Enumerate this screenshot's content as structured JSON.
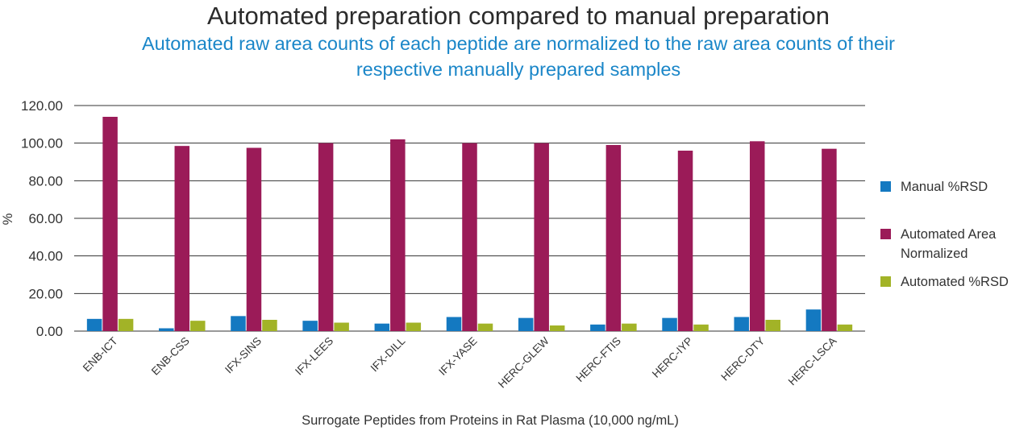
{
  "chart_data": {
    "type": "bar",
    "title": "Automated preparation compared to manual preparation",
    "subtitle": [
      "Automated raw area counts of each peptide are normalized to the raw area counts of their",
      "respective manually prepared samples"
    ],
    "xlabel": "Surrogate Peptides from Proteins in Rat Plasma (10,000 ng/mL)",
    "ylabel": "%",
    "ylim": [
      0,
      120
    ],
    "yticks": [
      "0.00",
      "20.00",
      "40.00",
      "60.00",
      "80.00",
      "100.00",
      "120.00"
    ],
    "grid": true,
    "legend_position": "right",
    "categories": [
      "ENB-ICT",
      "ENB-CSS",
      "IFX-SINS",
      "IFX-LEES",
      "IFX-DILL",
      "IFX-YASE",
      "HERC-GLEW",
      "HERC-FTIS",
      "HERC-IYP",
      "HERC-DTY",
      "HERC-LSCA"
    ],
    "series": [
      {
        "name": "Manual %RSD",
        "color": "#1479c1",
        "values": [
          6.5,
          1.5,
          8.0,
          5.5,
          4.0,
          7.5,
          7.0,
          3.5,
          7.0,
          7.5,
          11.5
        ]
      },
      {
        "name": "Automated Area Normalized",
        "legend_lines": [
          "Automated Area",
          "Normalized"
        ],
        "color": "#9b1b58",
        "values": [
          114.0,
          98.5,
          97.5,
          100.0,
          102.0,
          100.0,
          100.0,
          99.0,
          96.0,
          101.0,
          97.0
        ]
      },
      {
        "name": "Automated %RSD",
        "color": "#a2b327",
        "values": [
          6.5,
          5.5,
          6.0,
          4.5,
          4.5,
          4.0,
          3.0,
          4.0,
          3.5,
          6.0,
          3.5
        ]
      }
    ]
  }
}
